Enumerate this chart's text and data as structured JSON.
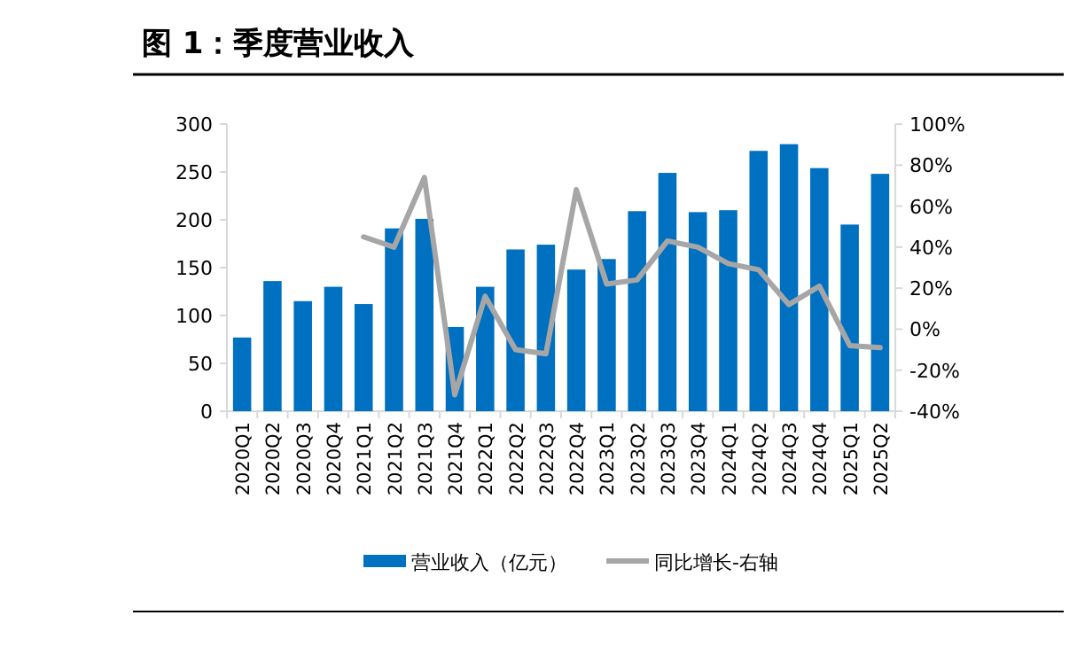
{
  "chart_data": {
    "type": "bar",
    "title": "图 1：季度营业收入",
    "categories": [
      "2020Q1",
      "2020Q2",
      "2020Q3",
      "2020Q4",
      "2021Q1",
      "2021Q2",
      "2021Q3",
      "2021Q4",
      "2022Q1",
      "2022Q2",
      "2022Q3",
      "2022Q4",
      "2023Q1",
      "2023Q2",
      "2023Q3",
      "2023Q4",
      "2024Q1",
      "2024Q2",
      "2024Q3",
      "2024Q4",
      "2025Q1",
      "2025Q2"
    ],
    "series": [
      {
        "name": "营业收入（亿元）",
        "color": "#0070c0",
        "values": [
          77,
          136,
          115,
          130,
          112,
          191,
          201,
          88,
          130,
          169,
          174,
          148,
          159,
          209,
          249,
          208,
          210,
          272,
          279,
          254,
          195,
          248
        ]
      },
      {
        "name": "同比增长-右轴",
        "type": "line",
        "axis": "y2",
        "color": "#a6a6a6",
        "values": [
          null,
          null,
          null,
          null,
          45,
          40,
          74,
          -32,
          16,
          -10,
          -12,
          68,
          22,
          24,
          43,
          40,
          32,
          29,
          12,
          21,
          -8,
          -9
        ]
      }
    ],
    "ylim": [
      0,
      300
    ],
    "yticks": [
      0,
      50,
      100,
      150,
      200,
      250,
      300
    ],
    "y2lim": [
      -40,
      100
    ],
    "y2ticks": [
      {
        "value": -40,
        "label": "-40%"
      },
      {
        "value": -20,
        "label": "-20%"
      },
      {
        "value": 0,
        "label": "0%"
      },
      {
        "value": 20,
        "label": "20%"
      },
      {
        "value": 40,
        "label": "40%"
      },
      {
        "value": 60,
        "label": "60%"
      },
      {
        "value": 80,
        "label": "80%"
      },
      {
        "value": 100,
        "label": "100%"
      }
    ],
    "legend": "bottom",
    "grid": false
  }
}
